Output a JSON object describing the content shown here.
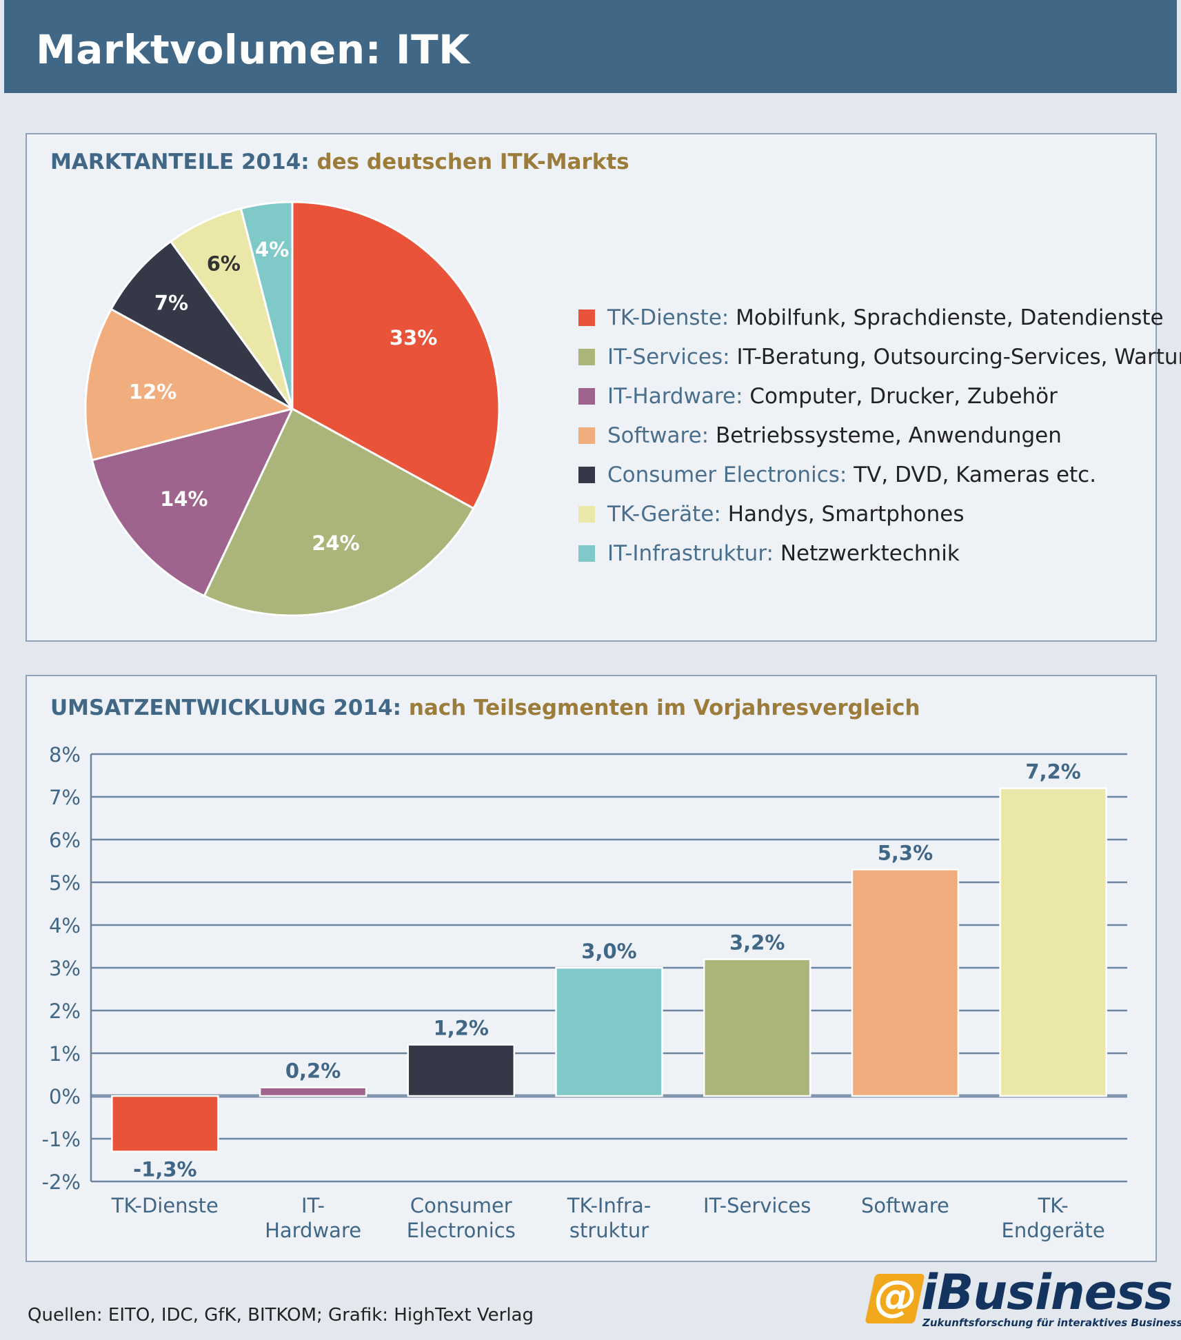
{
  "header": {
    "title": "Marktvolumen: ITK"
  },
  "pie_panel": {
    "title_key": "MARKTANTEILE 2014:",
    "title_rest": "des deutschen ITK-Markts"
  },
  "bar_panel": {
    "title_key": "UMSATZENTWICKLUNG 2014:",
    "title_rest": "nach Teilsegmenten im Vorjahresvergleich"
  },
  "legend": [
    {
      "key": "TK-Dienste:",
      "desc": "Mobilfunk, Sprachdienste, Datendienste",
      "color": "#e8533a"
    },
    {
      "key": "IT-Services:",
      "desc": "IT-Beratung, Outsourcing-Services, Wartung",
      "color": "#abb57a"
    },
    {
      "key": "IT-Hardware:",
      "desc": "Computer, Drucker, Zubehör",
      "color": "#9e648d"
    },
    {
      "key": "Software:",
      "desc": "Betriebssysteme, Anwendungen",
      "color": "#f2ad7e"
    },
    {
      "key": "Consumer Electronics:",
      "desc": "TV, DVD, Kameras etc.",
      "color": "#343847"
    },
    {
      "key": "TK-Geräte:",
      "desc": "Handys, Smartphones",
      "color": "#ebe7a8"
    },
    {
      "key": "IT-Infrastruktur:",
      "desc": "Netzwerktechnik",
      "color": "#7fcac8"
    }
  ],
  "chart_data": [
    {
      "type": "pie",
      "title": "MARKTANTEILE 2014: des deutschen ITK-Markts",
      "slices": [
        {
          "name": "TK-Dienste",
          "value": 33,
          "label": "33%",
          "color": "#e8533a",
          "label_color": "#ffffff"
        },
        {
          "name": "IT-Services",
          "value": 24,
          "label": "24%",
          "color": "#abb57a",
          "label_color": "#ffffff"
        },
        {
          "name": "IT-Hardware",
          "value": 14,
          "label": "14%",
          "color": "#9e648d",
          "label_color": "#ffffff"
        },
        {
          "name": "Software",
          "value": 12,
          "label": "12%",
          "color": "#f2ad7e",
          "label_color": "#ffffff"
        },
        {
          "name": "Consumer Electronics",
          "value": 7,
          "label": "7%",
          "color": "#343847",
          "label_color": "#ffffff"
        },
        {
          "name": "TK-Geräte",
          "value": 6,
          "label": "6%",
          "color": "#ebe7a8",
          "label_color": "#333333"
        },
        {
          "name": "IT-Infrastruktur",
          "value": 4,
          "label": "4%",
          "color": "#7fcac8",
          "label_color": "#ffffff"
        }
      ]
    },
    {
      "type": "bar",
      "title": "UMSATZENTWICKLUNG 2014: nach Teilsegmenten im Vorjahresvergleich",
      "categories": [
        [
          "TK-Dienste"
        ],
        [
          "IT-",
          "Hardware"
        ],
        [
          "Consumer",
          "Electronics"
        ],
        [
          "TK-Infra-",
          "struktur"
        ],
        [
          "IT-Services"
        ],
        [
          "Software"
        ],
        [
          "TK-",
          "Endgeräte"
        ]
      ],
      "values": [
        -1.3,
        0.2,
        1.2,
        3.0,
        3.2,
        5.3,
        7.2
      ],
      "value_labels": [
        "-1,3%",
        "0,2%",
        "1,2%",
        "3,0%",
        "3,2%",
        "5,3%",
        "7,2%"
      ],
      "colors": [
        "#e8533a",
        "#9e648d",
        "#343847",
        "#7fcac8",
        "#abb57a",
        "#f2ad7e",
        "#ebe7a8"
      ],
      "ylim": [
        -2,
        8
      ],
      "yticks": [
        "8%",
        "7%",
        "6%",
        "5%",
        "4%",
        "3%",
        "2%",
        "1%",
        "0%",
        "-1%",
        "-2%"
      ],
      "grid": true
    }
  ],
  "footer": {
    "source": "Quellen: EITO, IDC, GfK, BITKOM; Grafik: HighText Verlag",
    "logo_word": "iBusiness",
    "logo_symbol": "@",
    "logo_tagline": "Zukunftsforschung für interaktives Business"
  }
}
